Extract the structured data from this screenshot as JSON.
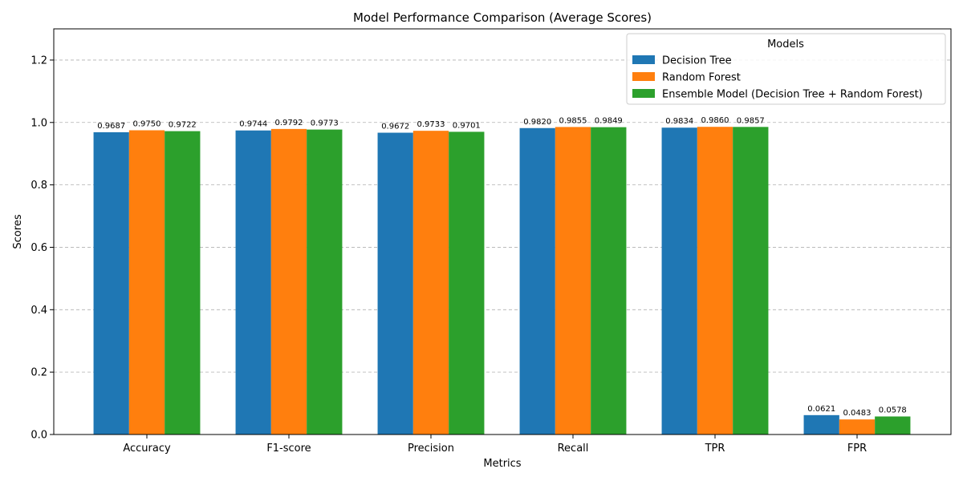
{
  "chart_data": {
    "type": "bar",
    "title": "Model Performance Comparison (Average Scores)",
    "xlabel": "Metrics",
    "ylabel": "Scores",
    "ylim": [
      0,
      1.3
    ],
    "yticks": [
      "0.0",
      "0.2",
      "0.4",
      "0.6",
      "0.8",
      "1.0",
      "1.2"
    ],
    "grid": "y-dashed",
    "legend_title": "Models",
    "legend_position": "top-right",
    "categories": [
      "Accuracy",
      "F1-score",
      "Precision",
      "Recall",
      "TPR",
      "FPR"
    ],
    "series": [
      {
        "name": "Decision Tree",
        "color": "#1f77b4",
        "values": [
          0.9687,
          0.9744,
          0.9672,
          0.982,
          0.9834,
          0.0621
        ],
        "labels": [
          "0.9687",
          "0.9744",
          "0.9672",
          "0.9820",
          "0.9834",
          "0.0621"
        ]
      },
      {
        "name": "Random Forest",
        "color": "#ff7f0e",
        "values": [
          0.975,
          0.9792,
          0.9733,
          0.9855,
          0.986,
          0.0483
        ],
        "labels": [
          "0.9750",
          "0.9792",
          "0.9733",
          "0.9855",
          "0.9860",
          "0.0483"
        ]
      },
      {
        "name": "Ensemble Model (Decision Tree + Random Forest)",
        "color": "#2ca02c",
        "values": [
          0.9722,
          0.9773,
          0.9701,
          0.9849,
          0.9857,
          0.0578
        ],
        "labels": [
          "0.9722",
          "0.9773",
          "0.9701",
          "0.9849",
          "0.9857",
          "0.0578"
        ]
      }
    ]
  }
}
